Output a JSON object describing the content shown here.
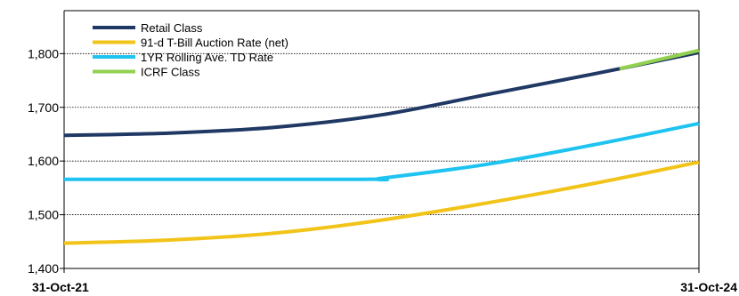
{
  "chart_data": {
    "type": "line",
    "title": "",
    "xlabel": "",
    "ylabel": "",
    "x_tick_labels": [
      "31-Oct-21",
      "31-Oct-24"
    ],
    "x_range": [
      0,
      36
    ],
    "y_ticks": [
      1400,
      1500,
      1600,
      1700,
      1800
    ],
    "y_tick_labels": [
      "1,400",
      "1,500",
      "1,600",
      "1,700",
      "1,800"
    ],
    "ylim": [
      1400,
      1880
    ],
    "grid": "horizontal dotted",
    "legend_position": "top-left",
    "series": [
      {
        "name": "Retail Class",
        "color": "#203864",
        "x": [
          0,
          6,
          12,
          18,
          24,
          30,
          36
        ],
        "y": [
          1648,
          1652,
          1663,
          1686,
          1724,
          1762,
          1802
        ]
      },
      {
        "name": "91-d T-Bill Auction Rate (net)",
        "color": "#f2c318",
        "x": [
          0,
          6,
          12,
          18,
          24,
          30,
          36
        ],
        "y": [
          1447,
          1453,
          1466,
          1490,
          1522,
          1558,
          1598
        ]
      },
      {
        "name": "1YR Rolling Ave. TD Rate",
        "color": "#1fc3f0",
        "x": [
          0,
          17,
          18,
          24,
          30,
          36
        ],
        "y": [
          1566,
          1566,
          1568,
          1594,
          1630,
          1670
        ]
      },
      {
        "name": "ICRF Class",
        "color": "#92d050",
        "x": [
          31.5,
          36
        ],
        "y": [
          1772,
          1806
        ]
      }
    ]
  }
}
